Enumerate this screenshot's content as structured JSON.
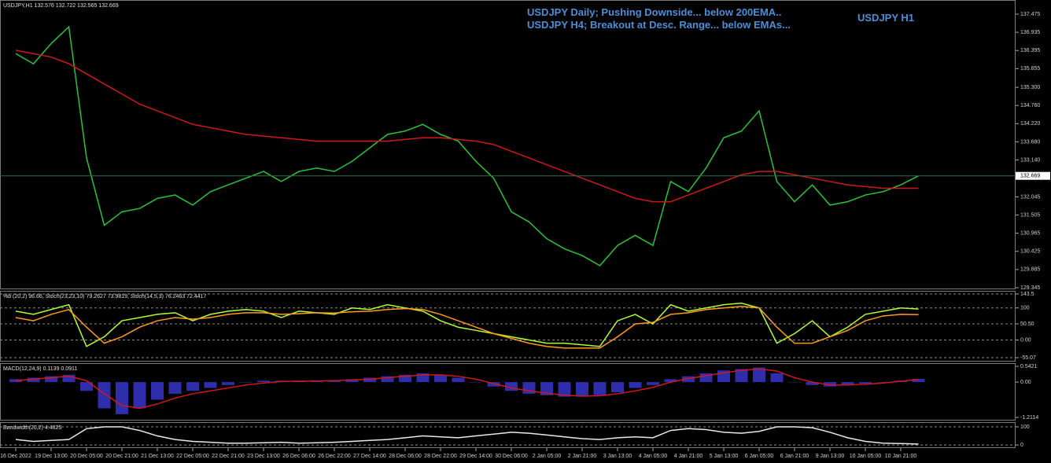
{
  "chart_data": [
    {
      "type": "line",
      "title": "USDJPY,H1  132.576 132.722 132.565 132.669",
      "annotations": [
        "USDJPY Daily; Pushing Downside... below 200EMA..",
        "USDJPY H4; Breakout at Desc. Range... below EMAs...",
        "USDJPY H1"
      ],
      "categories": [
        "16 Dec 2022",
        null,
        "19 Dec 13:00",
        null,
        "20 Dec 05:00",
        null,
        "20 Dec 21:00",
        null,
        "21 Dec 13:00",
        null,
        "22 Dec 05:00",
        null,
        "22 Dec 21:00",
        null,
        "23 Dec 13:00",
        null,
        "26 Dec 06:00",
        null,
        "26 Dec 22:00",
        null,
        "27 Dec 14:00",
        null,
        "28 Dec 06:00",
        null,
        "28 Dec 22:00",
        null,
        "29 Dec 14:00",
        null,
        "30 Dec 06:00",
        null,
        "2 Jan 05:00",
        null,
        "2 Jan 21:00",
        null,
        "3 Jan 13:00",
        null,
        "4 Jan 05:00",
        null,
        "4 Jan 21:00",
        null,
        "5 Jan 13:00",
        null,
        "6 Jan 05:00",
        null,
        "6 Jan 21:00",
        null,
        "9 Jan 13:00",
        null,
        "10 Jan 05:00",
        null,
        "10 Jan 21:00",
        null
      ],
      "series": [
        {
          "color": "#27c43a",
          "values": [
            136.3,
            136.0,
            136.6,
            137.1,
            133.2,
            131.2,
            131.6,
            131.7,
            132.0,
            132.1,
            131.8,
            132.2,
            132.4,
            132.6,
            132.8,
            132.5,
            132.8,
            132.9,
            132.8,
            133.1,
            133.5,
            133.9,
            134.0,
            134.2,
            133.9,
            133.7,
            133.1,
            132.6,
            131.6,
            131.3,
            130.8,
            130.5,
            130.3,
            130.0,
            130.6,
            130.9,
            130.6,
            132.5,
            132.2,
            132.9,
            133.8,
            134.0,
            134.6,
            132.5,
            131.9,
            132.4,
            131.8,
            131.9,
            132.1,
            132.2,
            132.4,
            132.669
          ]
        },
        {
          "color": "#d01818",
          "values": [
            136.4,
            136.3,
            136.2,
            136.0,
            135.7,
            135.4,
            135.1,
            134.8,
            134.6,
            134.4,
            134.2,
            134.1,
            134.0,
            133.9,
            133.85,
            133.8,
            133.75,
            133.7,
            133.7,
            133.7,
            133.7,
            133.7,
            133.75,
            133.8,
            133.8,
            133.75,
            133.7,
            133.6,
            133.4,
            133.2,
            133.0,
            132.8,
            132.6,
            132.4,
            132.2,
            132.0,
            131.9,
            131.9,
            132.1,
            132.3,
            132.5,
            132.7,
            132.8,
            132.8,
            132.7,
            132.6,
            132.5,
            132.4,
            132.35,
            132.3,
            132.3,
            132.3
          ]
        }
      ],
      "last_price": {
        "value": 132.669,
        "label": "132.669"
      },
      "ylim": [
        129.298,
        137.895
      ],
      "yticks": [
        137.475,
        136.935,
        136.395,
        135.855,
        {
          "value": 135.3,
          "label": "135.300"
        },
        {
          "value": 134.76,
          "label": "134.760"
        },
        {
          "value": 134.22,
          "label": "134.220"
        },
        {
          "value": 133.68,
          "label": "133.680"
        },
        {
          "value": 133.14,
          "label": "133.140"
        },
        132.045,
        131.505,
        130.965,
        130.425,
        129.885,
        129.345
      ],
      "grid": false
    },
    {
      "type": "line",
      "title": "%b (20,2) 96.66, Stoch(23,23,10) 79.2627 73.9819, Stoch(14,5,3) 76.2463 72.4417",
      "series": [
        {
          "color": "#adff2f",
          "values": [
            90,
            80,
            95,
            110,
            -20,
            10,
            60,
            70,
            80,
            85,
            60,
            80,
            90,
            95,
            90,
            70,
            90,
            85,
            80,
            100,
            95,
            110,
            100,
            90,
            60,
            40,
            30,
            20,
            10,
            0,
            -10,
            -10,
            -15,
            -20,
            60,
            80,
            50,
            110,
            90,
            100,
            110,
            115,
            100,
            -10,
            20,
            60,
            10,
            40,
            80,
            90,
            100,
            96.66
          ]
        },
        {
          "color": "#ff9a1a",
          "values": [
            70,
            60,
            80,
            95,
            40,
            -10,
            10,
            40,
            60,
            70,
            65,
            70,
            80,
            85,
            85,
            80,
            82,
            85,
            84,
            88,
            90,
            95,
            98,
            95,
            80,
            60,
            40,
            20,
            5,
            -10,
            -20,
            -25,
            -25,
            -25,
            10,
            50,
            55,
            80,
            85,
            95,
            100,
            105,
            100,
            40,
            -10,
            -10,
            10,
            30,
            60,
            75,
            80,
            79.2627
          ]
        }
      ],
      "ylim": [
        -67.3,
        153.3
      ],
      "yticks": [
        143.5,
        100,
        {
          "value": 50.5,
          "label": "50.50"
        },
        {
          "value": 0,
          "label": "0.00"
        },
        -55.07
      ],
      "grid": true
    },
    {
      "type": "line",
      "title": "MACD(12,24,9) 0.1139 0.0911",
      "series": [
        {
          "color": "#3a3ad8",
          "style": "bar",
          "values": [
            0.1,
            0.15,
            0.2,
            0.25,
            -0.3,
            -0.9,
            -1.1,
            -0.9,
            -0.6,
            -0.4,
            -0.3,
            -0.2,
            -0.1,
            0.0,
            0.05,
            0.05,
            0.05,
            0.05,
            0.05,
            0.1,
            0.15,
            0.2,
            0.25,
            0.3,
            0.25,
            0.15,
            0,
            -0.15,
            -0.3,
            -0.4,
            -0.45,
            -0.5,
            -0.5,
            -0.45,
            -0.35,
            -0.2,
            -0.1,
            0.1,
            0.2,
            0.3,
            0.4,
            0.45,
            0.5,
            0.3,
            0.0,
            -0.1,
            -0.15,
            -0.1,
            -0.05,
            0,
            0.05,
            0.1139
          ]
        },
        {
          "color": "#d01818",
          "values": [
            0.05,
            0.1,
            0.15,
            0.2,
            0.05,
            -0.4,
            -0.8,
            -0.9,
            -0.75,
            -0.55,
            -0.4,
            -0.3,
            -0.2,
            -0.1,
            -0.03,
            0.02,
            0.03,
            0.04,
            0.05,
            0.07,
            0.1,
            0.15,
            0.2,
            0.25,
            0.25,
            0.2,
            0.1,
            -0.05,
            -0.2,
            -0.3,
            -0.38,
            -0.45,
            -0.48,
            -0.47,
            -0.4,
            -0.3,
            -0.18,
            0,
            0.12,
            0.22,
            0.32,
            0.4,
            0.45,
            0.38,
            0.15,
            0,
            -0.1,
            -0.1,
            -0.07,
            -0.03,
            0.03,
            0.0911
          ]
        }
      ],
      "ylim": [
        -1.319,
        0.65
      ],
      "yticks": [
        0.5421,
        {
          "value": 0,
          "label": "0.00"
        },
        -1.2114
      ],
      "grid": false
    },
    {
      "type": "line",
      "title": "Bandwidth(20,2) 4.4825",
      "series": [
        {
          "color": "#e8e8e8",
          "values": [
            30,
            20,
            25,
            30,
            90,
            100,
            100,
            80,
            50,
            30,
            20,
            15,
            10,
            10,
            12,
            15,
            10,
            12,
            15,
            20,
            25,
            30,
            40,
            50,
            45,
            40,
            50,
            60,
            70,
            65,
            55,
            45,
            35,
            30,
            40,
            45,
            40,
            80,
            90,
            85,
            70,
            65,
            75,
            100,
            100,
            95,
            70,
            40,
            20,
            10,
            8,
            5
          ]
        }
      ],
      "ylim": [
        -17,
        126
      ],
      "yticks": [
        100,
        0
      ],
      "grid": true
    }
  ]
}
